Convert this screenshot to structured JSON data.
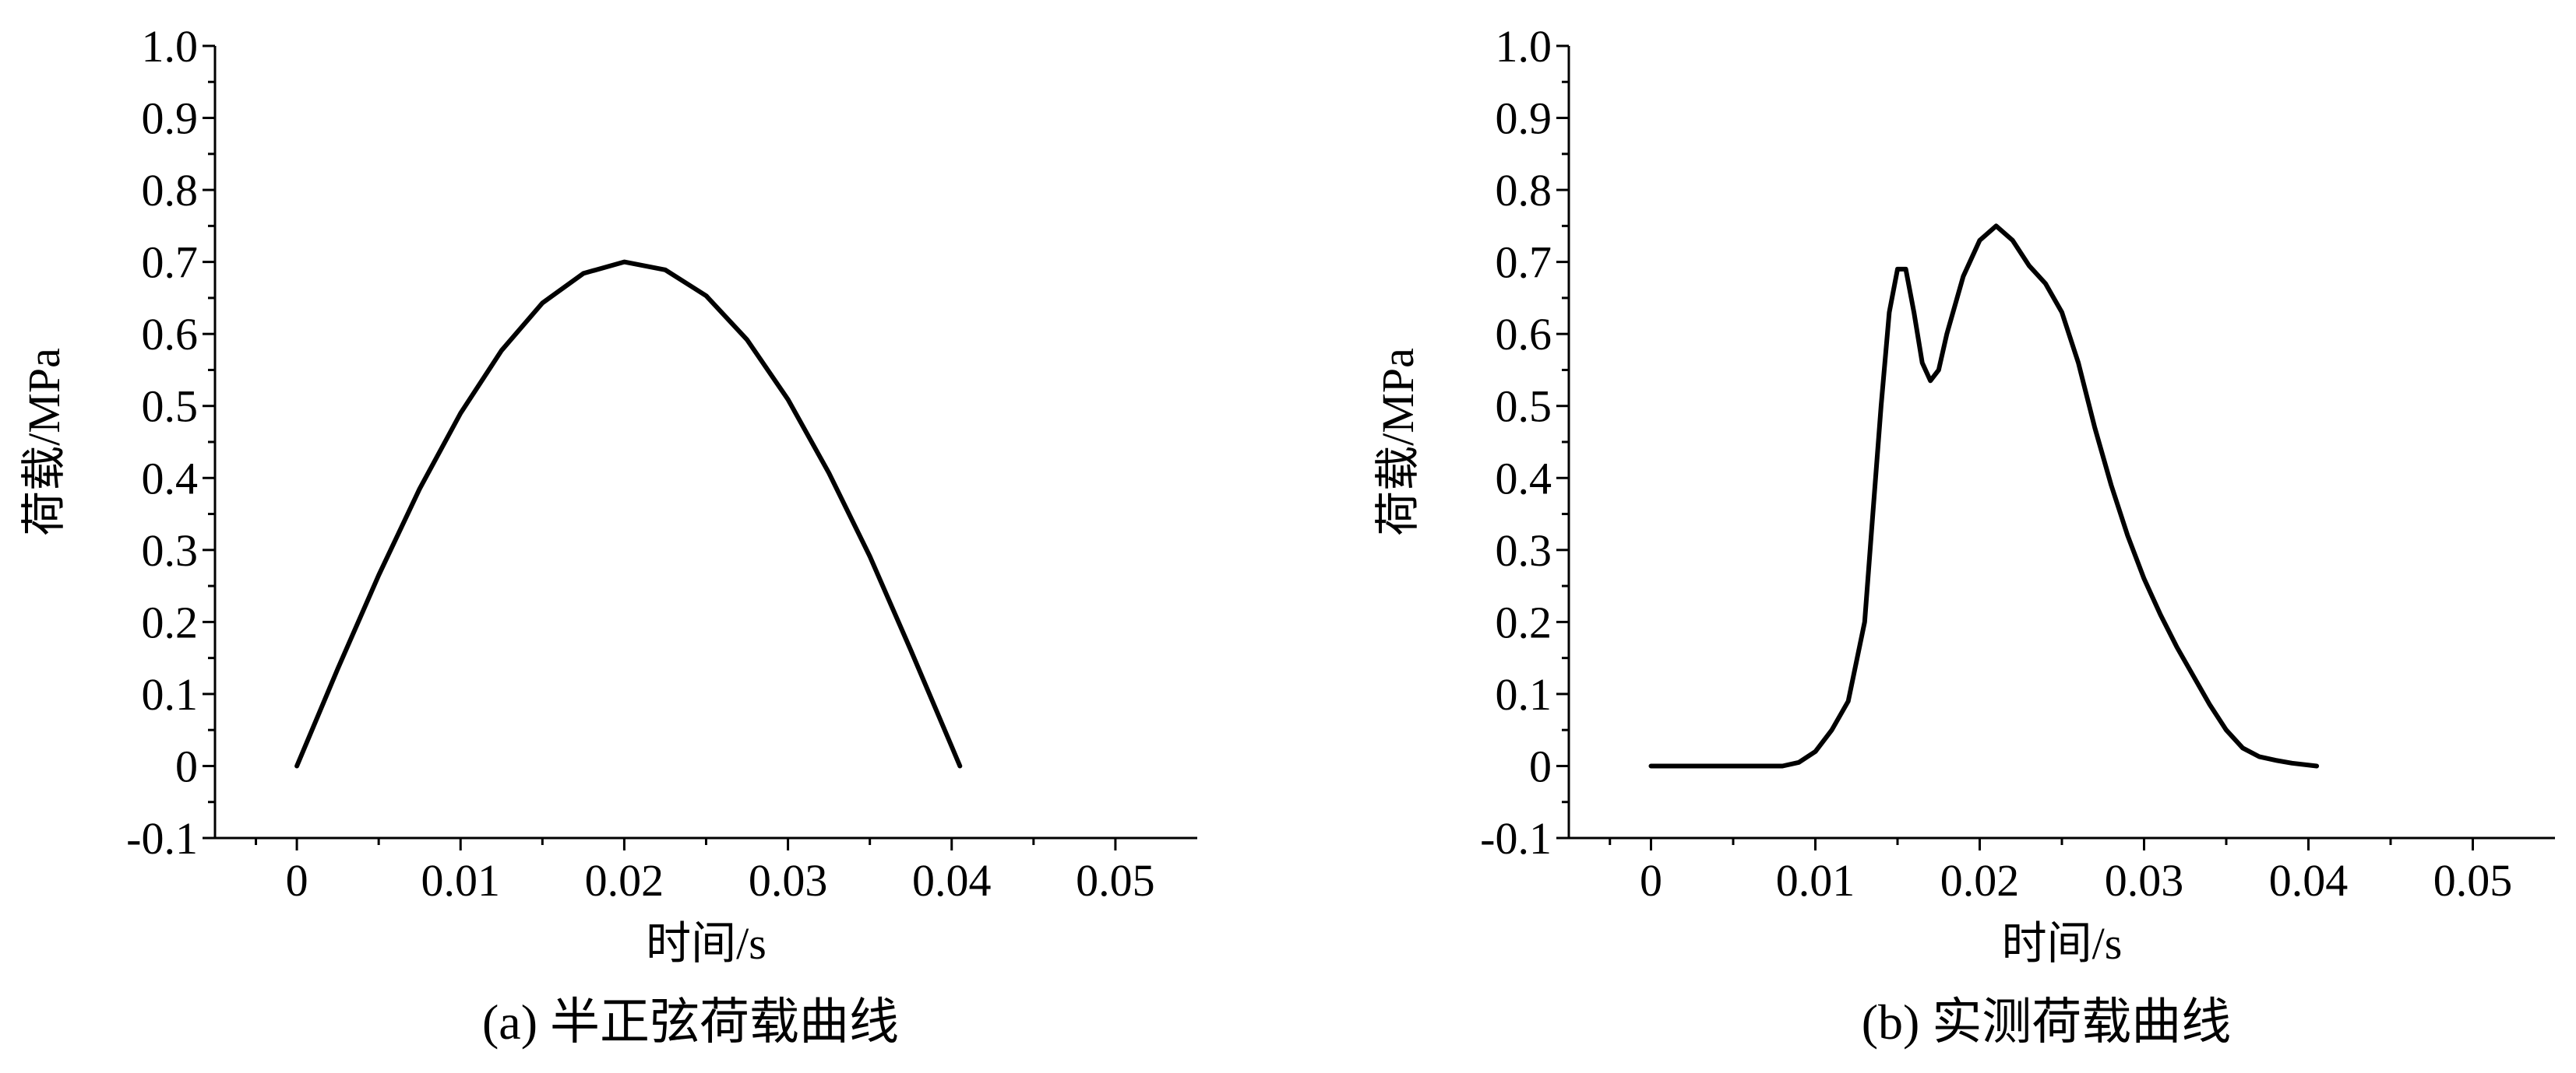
{
  "chart_data": [
    {
      "type": "line",
      "title": "(a) 半正弦荷载曲线",
      "x_label": "时间/s",
      "y_label": "荷载/MPa",
      "x": [
        0,
        0.0025,
        0.005,
        0.0075,
        0.01,
        0.0125,
        0.015,
        0.0175,
        0.02,
        0.0225,
        0.025,
        0.0275,
        0.03,
        0.0325,
        0.035,
        0.0375,
        0.04,
        0.0405
      ],
      "series": [
        {
          "color": "#000000",
          "values": [
            0,
            0.135,
            0.265,
            0.385,
            0.49,
            0.577,
            0.643,
            0.684,
            0.7,
            0.689,
            0.653,
            0.592,
            0.509,
            0.407,
            0.291,
            0.161,
            0.027,
            0
          ]
        }
      ],
      "xlim": [
        -0.005,
        0.055
      ],
      "xticks": [
        0,
        0.01,
        0.02,
        0.03,
        0.04,
        0.05
      ],
      "ylim": [
        -0.1,
        1.0
      ],
      "yticks": [
        -0.1,
        0,
        0.1,
        0.2,
        0.3,
        0.4,
        0.5,
        0.6,
        0.7,
        0.8,
        0.9,
        {
          "value": 1.0,
          "label": "1.0"
        }
      ]
    },
    {
      "type": "line",
      "title": "(b) 实测荷载曲线",
      "x_label": "时间/s",
      "y_label": "荷载/MPa",
      "x": [
        0,
        0.004,
        0.008,
        0.009,
        0.01,
        0.011,
        0.012,
        0.013,
        0.0135,
        0.014,
        0.0145,
        0.015,
        0.0155,
        0.016,
        0.0165,
        0.017,
        0.0175,
        0.018,
        0.019,
        0.02,
        0.021,
        0.022,
        0.023,
        0.024,
        0.025,
        0.026,
        0.027,
        0.028,
        0.029,
        0.03,
        0.031,
        0.032,
        0.033,
        0.034,
        0.035,
        0.036,
        0.037,
        0.038,
        0.039,
        0.0405
      ],
      "series": [
        {
          "color": "#000000",
          "values": [
            0,
            0,
            0,
            0.005,
            0.02,
            0.05,
            0.09,
            0.2,
            0.35,
            0.5,
            0.63,
            0.69,
            0.69,
            0.63,
            0.56,
            0.535,
            0.55,
            0.6,
            0.68,
            0.73,
            0.75,
            0.73,
            0.695,
            0.67,
            0.63,
            0.56,
            0.47,
            0.39,
            0.32,
            0.26,
            0.21,
            0.165,
            0.125,
            0.085,
            0.05,
            0.025,
            0.013,
            0.008,
            0.004,
            0
          ]
        }
      ],
      "xlim": [
        -0.005,
        0.055
      ],
      "xticks": [
        0,
        0.01,
        0.02,
        0.03,
        0.04,
        0.05
      ],
      "ylim": [
        -0.1,
        1.0
      ],
      "yticks": [
        -0.1,
        0,
        0.1,
        0.2,
        0.3,
        0.4,
        0.5,
        0.6,
        0.7,
        0.8,
        0.9,
        {
          "value": 1.0,
          "label": "1.0"
        }
      ]
    }
  ]
}
